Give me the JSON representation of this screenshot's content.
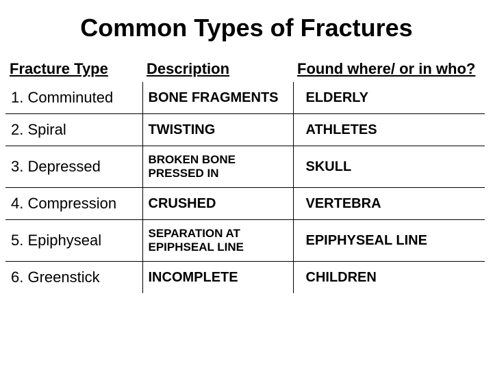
{
  "title": "Common Types of Fractures",
  "table": {
    "columns": [
      "Fracture Type",
      "Description",
      "Found where/ or in who?"
    ],
    "rows": [
      {
        "type": "1. Comminuted",
        "desc": "BONE FRAGMENTS",
        "where": "ELDERLY",
        "desc_small": false
      },
      {
        "type": "2. Spiral",
        "desc": "TWISTING",
        "where": "ATHLETES",
        "desc_small": false
      },
      {
        "type": "3. Depressed",
        "desc": "BROKEN BONE PRESSED IN",
        "where": "SKULL",
        "desc_small": true
      },
      {
        "type": "4. Compression",
        "desc": "CRUSHED",
        "where": "VERTEBRA",
        "desc_small": false
      },
      {
        "type": "5. Epiphyseal",
        "desc": "SEPARATION AT EPIPHSEAL LINE",
        "where": "EPIPHYSEAL LINE",
        "desc_small": true
      },
      {
        "type": "6. Greenstick",
        "desc": "INCOMPLETE",
        "where": "CHILDREN",
        "desc_small": false
      }
    ]
  },
  "styling": {
    "background_color": "#ffffff",
    "text_color": "#000000",
    "border_color": "#000000",
    "title_fontsize": 36,
    "header_fontsize": 22,
    "body_fontsize": 20,
    "small_fontsize": 17,
    "font_family": "Arial"
  }
}
